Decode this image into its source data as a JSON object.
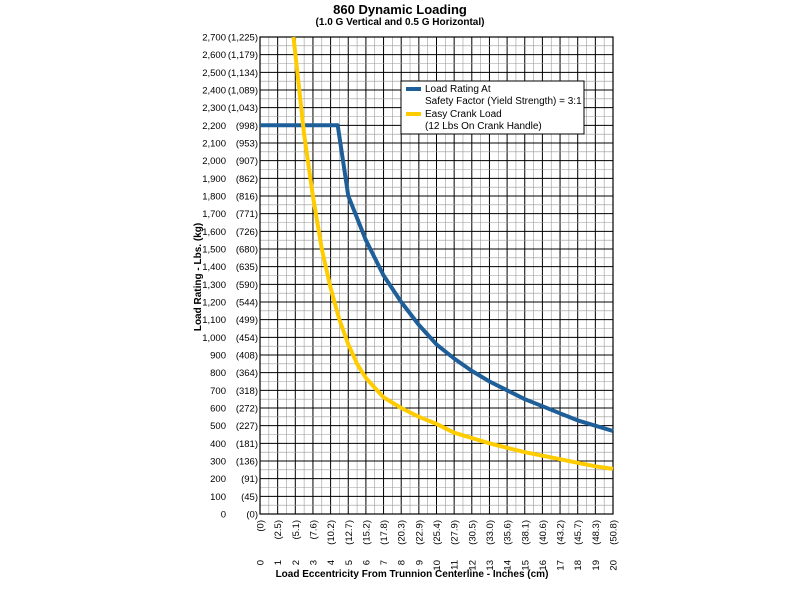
{
  "chart_data": {
    "type": "line",
    "title": "860 Dynamic Loading",
    "subtitle": "(1.0 G Vertical and 0.5 G Horizontal)",
    "xlabel": "Load Eccentricity From Trunnion Centerline - Inches (cm)",
    "ylabel": "Load Rating - Lbs. (kg)",
    "xlim": [
      0,
      20
    ],
    "ylim": [
      0,
      2700
    ],
    "grid": true,
    "minor_grid": true,
    "legend_position": "top-right",
    "y_ticks": [
      {
        "value": 0,
        "label": "0",
        "sub": "(0)"
      },
      {
        "value": 100,
        "label": "100",
        "sub": "(45)"
      },
      {
        "value": 200,
        "label": "200",
        "sub": "(91)"
      },
      {
        "value": 300,
        "label": "300",
        "sub": "(136)"
      },
      {
        "value": 400,
        "label": "400",
        "sub": "(181)"
      },
      {
        "value": 500,
        "label": "500",
        "sub": "(227)"
      },
      {
        "value": 600,
        "label": "600",
        "sub": "(272)"
      },
      {
        "value": 700,
        "label": "700",
        "sub": "(318)"
      },
      {
        "value": 800,
        "label": "800",
        "sub": "(364)"
      },
      {
        "value": 900,
        "label": "900",
        "sub": "(408)"
      },
      {
        "value": 1000,
        "label": "1,000",
        "sub": "(454)"
      },
      {
        "value": 1100,
        "label": "1,100",
        "sub": "(499)"
      },
      {
        "value": 1200,
        "label": "1,200",
        "sub": "(544)"
      },
      {
        "value": 1300,
        "label": "1,300",
        "sub": "(590)"
      },
      {
        "value": 1400,
        "label": "1,400",
        "sub": "(635)"
      },
      {
        "value": 1500,
        "label": "1,500",
        "sub": "(680)"
      },
      {
        "value": 1600,
        "label": "1,600",
        "sub": "(726)"
      },
      {
        "value": 1700,
        "label": "1,700",
        "sub": "(771)"
      },
      {
        "value": 1800,
        "label": "1,800",
        "sub": "(816)"
      },
      {
        "value": 1900,
        "label": "1,900",
        "sub": "(862)"
      },
      {
        "value": 2000,
        "label": "2,000",
        "sub": "(907)"
      },
      {
        "value": 2100,
        "label": "2,100",
        "sub": "(953)"
      },
      {
        "value": 2200,
        "label": "2,200",
        "sub": "(998)"
      },
      {
        "value": 2300,
        "label": "2,300",
        "sub": "(1,043)"
      },
      {
        "value": 2400,
        "label": "2,400",
        "sub": "(1,089)"
      },
      {
        "value": 2500,
        "label": "2,500",
        "sub": "(1,134)"
      },
      {
        "value": 2600,
        "label": "2,600",
        "sub": "(1,179)"
      },
      {
        "value": 2700,
        "label": "2,700",
        "sub": "(1,225)"
      }
    ],
    "x_ticks": [
      {
        "value": 0,
        "label": "0",
        "sub": "(0)"
      },
      {
        "value": 1,
        "label": "1",
        "sub": "(2.5)"
      },
      {
        "value": 2,
        "label": "2",
        "sub": "(5.1)"
      },
      {
        "value": 3,
        "label": "3",
        "sub": "(7.6)"
      },
      {
        "value": 4,
        "label": "4",
        "sub": "(10.2)"
      },
      {
        "value": 5,
        "label": "5",
        "sub": "(12.7)"
      },
      {
        "value": 6,
        "label": "6",
        "sub": "(15.2)"
      },
      {
        "value": 7,
        "label": "7",
        "sub": "(17.8)"
      },
      {
        "value": 8,
        "label": "8",
        "sub": "(20.3)"
      },
      {
        "value": 9,
        "label": "9",
        "sub": "(22.9)"
      },
      {
        "value": 10,
        "label": "10",
        "sub": "(25.4)"
      },
      {
        "value": 11,
        "label": "11",
        "sub": "(27.9)"
      },
      {
        "value": 12,
        "label": "12",
        "sub": "(30.5)"
      },
      {
        "value": 13,
        "label": "13",
        "sub": "(33.0)"
      },
      {
        "value": 14,
        "label": "14",
        "sub": "(35.6)"
      },
      {
        "value": 15,
        "label": "15",
        "sub": "(38.1)"
      },
      {
        "value": 16,
        "label": "16",
        "sub": "(40.6)"
      },
      {
        "value": 17,
        "label": "17",
        "sub": "(43.2)"
      },
      {
        "value": 18,
        "label": "18",
        "sub": "(45.7)"
      },
      {
        "value": 19,
        "label": "19",
        "sub": "(48.3)"
      },
      {
        "value": 20,
        "label": "20",
        "sub": "(50.8)"
      }
    ],
    "series": [
      {
        "name": "Load Rating At Safety Factor (Yield Strength) = 3:1",
        "legend_lines": [
          "Load Rating At",
          "Safety Factor (Yield Strength) = 3:1"
        ],
        "color": "#1f5f99",
        "x": [
          0,
          4,
          4.4,
          5,
          6,
          7,
          8,
          9,
          10,
          11,
          12,
          13,
          14,
          15,
          16,
          17,
          18,
          19,
          20
        ],
        "y": [
          2200,
          2200,
          2200,
          1800,
          1550,
          1350,
          1200,
          1070,
          960,
          880,
          810,
          750,
          700,
          650,
          610,
          570,
          530,
          500,
          470
        ]
      },
      {
        "name": "Easy Crank Load (12 Lbs On Crank Handle)",
        "legend_lines": [
          "Easy Crank Load",
          "(12 Lbs On Crank Handle)"
        ],
        "color": "#ffcc00",
        "x": [
          1.9,
          2.5,
          3,
          3.5,
          4,
          4.5,
          5,
          5.5,
          6,
          7,
          8,
          9,
          10,
          11,
          12,
          13,
          14,
          15,
          16,
          17,
          18,
          19,
          20
        ],
        "y": [
          2700,
          2150,
          1800,
          1500,
          1280,
          1100,
          960,
          850,
          770,
          660,
          600,
          550,
          510,
          460,
          430,
          400,
          375,
          350,
          330,
          310,
          290,
          270,
          255
        ]
      }
    ]
  }
}
